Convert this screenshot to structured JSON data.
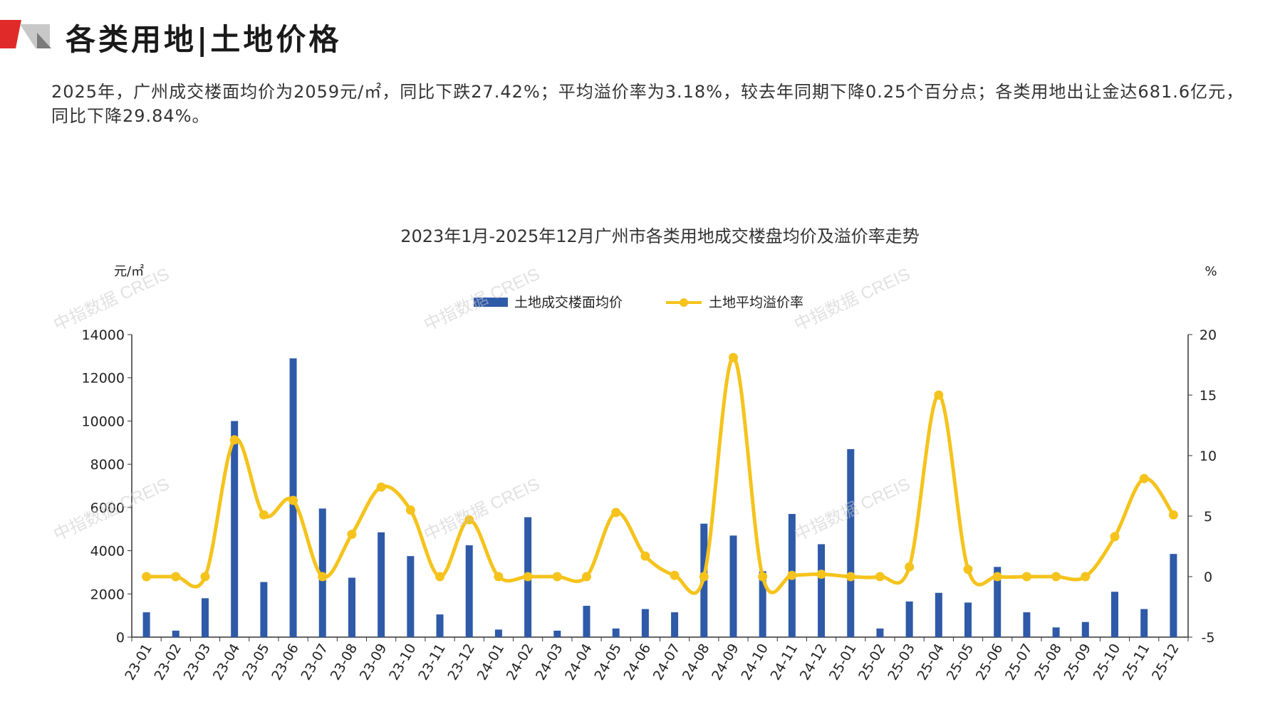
{
  "header": {
    "title": "各类用地|土地价格",
    "summary": "2025年，广州成交楼面均价为2059元/㎡，同比下跌27.42%；平均溢价率为3.18%，较去年同期下降0.25个百分点；各类用地出让金达681.6亿元，同比下降29.84%。"
  },
  "watermark": "中指数据 CREIS",
  "colors": {
    "bar": "#2e5aa8",
    "line": "#f5c31c",
    "axis": "#333333",
    "logo_red": "#e02a2a",
    "logo_gray": "#bdbdbd"
  },
  "chart_data": {
    "type": "bar",
    "title": "2023年1月-2025年12月广州市各类用地成交楼盘均价及溢价率走势",
    "y_left_label": "元/㎡",
    "y_right_label": "%",
    "ylim_left": [
      0,
      14000
    ],
    "ylim_right": [
      -5,
      20
    ],
    "y_left_ticks": [
      "0",
      "2000",
      "4000",
      "6000",
      "8000",
      "10000",
      "12000",
      "14000"
    ],
    "y_right_ticks": [
      "-5",
      "0",
      "5",
      "10",
      "15",
      "20"
    ],
    "legend_position": "top-center",
    "categories": [
      "23-01",
      "23-02",
      "23-03",
      "23-04",
      "23-05",
      "23-06",
      "23-07",
      "23-08",
      "23-09",
      "23-10",
      "23-11",
      "23-12",
      "24-01",
      "24-02",
      "24-03",
      "24-04",
      "24-05",
      "24-06",
      "24-07",
      "24-08",
      "24-09",
      "24-10",
      "24-11",
      "24-12",
      "25-01",
      "25-02",
      "25-03",
      "25-04",
      "25-05",
      "25-06",
      "25-07",
      "25-08",
      "25-09",
      "25-10",
      "25-11",
      "25-12"
    ],
    "series": [
      {
        "name": "土地成交楼面均价",
        "type": "bar",
        "axis": "left",
        "values": [
          1150,
          300,
          1800,
          10000,
          2550,
          12900,
          5950,
          2750,
          4850,
          3750,
          1050,
          4250,
          350,
          5550,
          300,
          1450,
          400,
          1300,
          1150,
          5250,
          4700,
          3050,
          5700,
          4300,
          8700,
          400,
          1650,
          2050,
          1600,
          3250,
          1150,
          450,
          700,
          2100,
          1300,
          3850
        ]
      },
      {
        "name": "土地平均溢价率",
        "type": "line",
        "axis": "right",
        "values": [
          0,
          0,
          0,
          11.3,
          5.1,
          6.3,
          0,
          3.5,
          7.4,
          5.5,
          0,
          4.7,
          0,
          0,
          0,
          0,
          5.3,
          1.7,
          0.1,
          0,
          18.1,
          0,
          0.1,
          0.2,
          0,
          0,
          0.8,
          15,
          0.6,
          0,
          0,
          0,
          0,
          3.3,
          8.1,
          5.1
        ]
      }
    ]
  }
}
